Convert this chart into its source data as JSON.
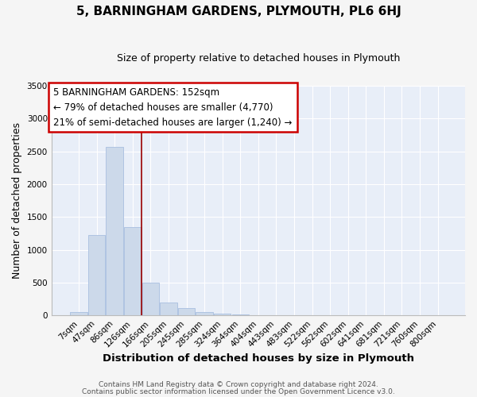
{
  "title": "5, BARNINGHAM GARDENS, PLYMOUTH, PL6 6HJ",
  "subtitle": "Size of property relative to detached houses in Plymouth",
  "xlabel": "Distribution of detached houses by size in Plymouth",
  "ylabel": "Number of detached properties",
  "bar_labels": [
    "7sqm",
    "47sqm",
    "86sqm",
    "126sqm",
    "166sqm",
    "205sqm",
    "245sqm",
    "285sqm",
    "324sqm",
    "364sqm",
    "404sqm",
    "443sqm",
    "483sqm",
    "522sqm",
    "562sqm",
    "602sqm",
    "641sqm",
    "681sqm",
    "721sqm",
    "760sqm",
    "800sqm"
  ],
  "bar_values": [
    50,
    1230,
    2570,
    1350,
    500,
    200,
    110,
    50,
    30,
    10,
    5,
    5,
    5,
    0,
    0,
    0,
    0,
    0,
    0,
    0,
    0
  ],
  "bar_color": "#ccd9ea",
  "bar_edge_color": "#a8bee0",
  "vline_color": "#990000",
  "vline_x_index": 3.5,
  "ylim": [
    0,
    3500
  ],
  "yticks": [
    0,
    500,
    1000,
    1500,
    2000,
    2500,
    3000,
    3500
  ],
  "annotation_title": "5 BARNINGHAM GARDENS: 152sqm",
  "annotation_line1": "← 79% of detached houses are smaller (4,770)",
  "annotation_line2": "21% of semi-detached houses are larger (1,240) →",
  "annotation_box_color": "#ffffff",
  "annotation_box_edge": "#cc0000",
  "footer1": "Contains HM Land Registry data © Crown copyright and database right 2024.",
  "footer2": "Contains public sector information licensed under the Open Government Licence v3.0.",
  "fig_facecolor": "#f5f5f5",
  "plot_facecolor": "#e8eef8",
  "grid_color": "#ffffff",
  "title_fontsize": 11,
  "subtitle_fontsize": 9,
  "ylabel_fontsize": 9,
  "xlabel_fontsize": 9.5,
  "tick_fontsize": 7.5,
  "footer_fontsize": 6.5,
  "ann_fontsize": 8.5
}
